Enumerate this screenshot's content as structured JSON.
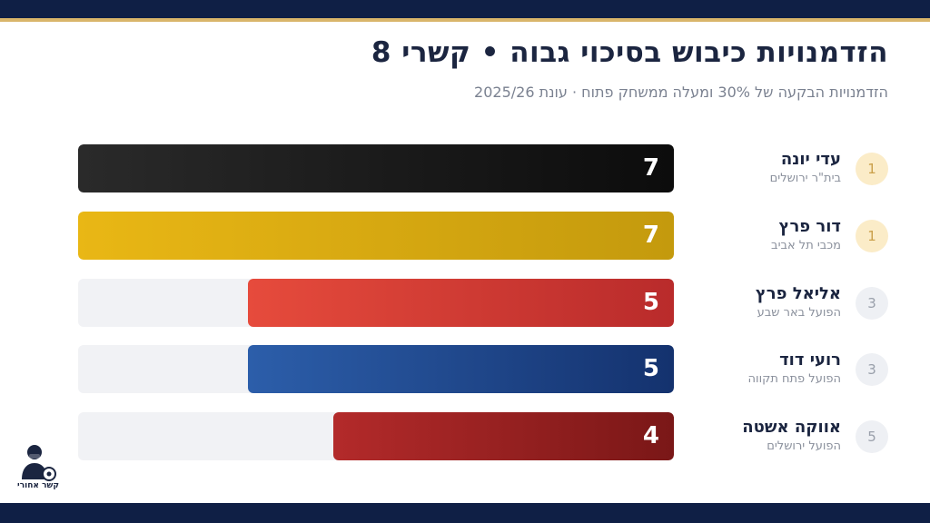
{
  "header": {
    "title": "הזדמנויות כיבוש בסיכוי גבוה • קשרי 8",
    "subtitle": "הזדמנויות הבקעה של 30% ומעלה ממשחק פתוח · עונת 2025/26"
  },
  "brand": {
    "logo_text": "קשר אחורי"
  },
  "colors": {
    "navy": "#0f1f45",
    "accent_gold": "#d9b56a",
    "beitar": [
      "#2a2a2a",
      "#0c0c0c"
    ],
    "maccabi_tlv": [
      "#e9b715",
      "#c49a0d"
    ],
    "hapoel_b7": [
      "#e64b3c",
      "#b92b2b"
    ],
    "hapoel_pt": [
      "#2c5eaa",
      "#14326e"
    ],
    "hapoel_jlm": [
      "#b32a2a",
      "#7a1717"
    ]
  },
  "chart_data": {
    "type": "bar",
    "orientation": "horizontal",
    "title": "הזדמנויות כיבוש בסיכוי גבוה • קשרי 8",
    "subtitle": "הזדמנויות הבקעה של 30% ומעלה ממשחק פתוח · עונת 2025/26",
    "xlim": [
      0,
      7
    ],
    "grid": false,
    "legend": "none",
    "items": [
      {
        "rank": "1",
        "name": "עדי יונה",
        "team": "בית\"ר ירושלים",
        "value": 7,
        "color": "beitar",
        "rank_style": "gold"
      },
      {
        "rank": "1",
        "name": "דור פרץ",
        "team": "מכבי תל אביב",
        "value": 7,
        "color": "maccabi_tlv",
        "rank_style": "gold"
      },
      {
        "rank": "3",
        "name": "אליאל פרץ",
        "team": "הפועל באר שבע",
        "value": 5,
        "color": "hapoel_b7",
        "rank_style": "grey"
      },
      {
        "rank": "3",
        "name": "רועי דוד",
        "team": "הפועל פתח תקווה",
        "value": 5,
        "color": "hapoel_pt",
        "rank_style": "grey"
      },
      {
        "rank": "5",
        "name": "אווקה אשטה",
        "team": "הפועל ירושלים",
        "value": 4,
        "color": "hapoel_jlm",
        "rank_style": "grey"
      }
    ]
  }
}
